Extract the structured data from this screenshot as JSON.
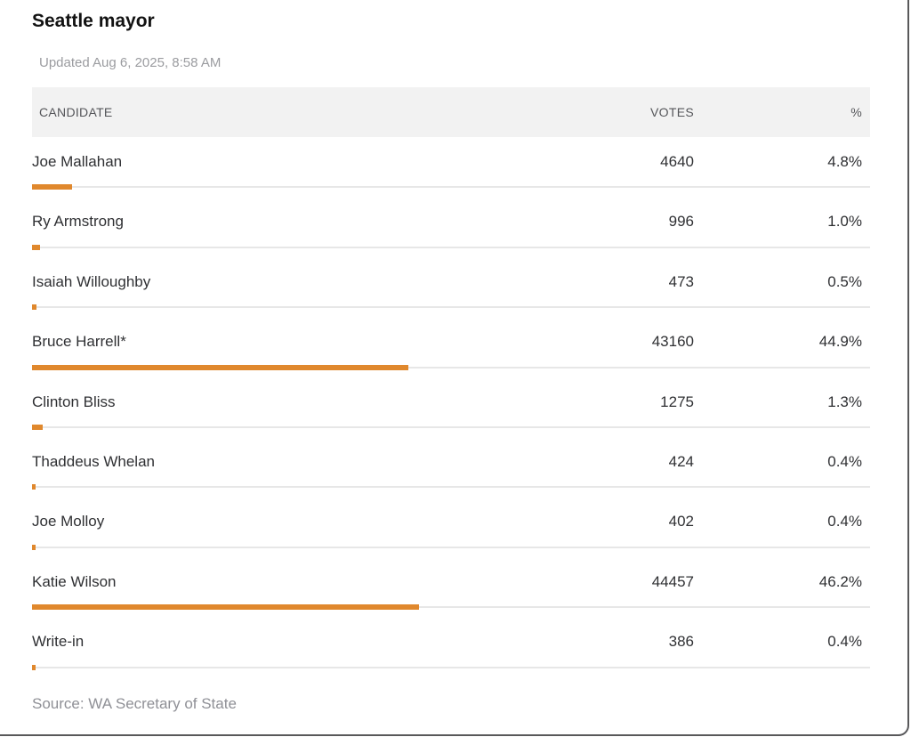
{
  "title": "Seattle mayor",
  "updated": "Updated Aug 6, 2025, 8:58 AM",
  "source": "Source: WA Secretary of State",
  "colors": {
    "bar": "#E0882D",
    "header_bg": "#F2F2F2",
    "frame_border": "#58585A"
  },
  "table": {
    "columns": [
      "CANDIDATE",
      "VOTES",
      "%"
    ],
    "rows": [
      {
        "candidate": "Joe Mallahan",
        "votes": "4640",
        "pct": "4.8%",
        "pct_value": 4.8
      },
      {
        "candidate": "Ry Armstrong",
        "votes": "996",
        "pct": "1.0%",
        "pct_value": 1.0
      },
      {
        "candidate": "Isaiah Willoughby",
        "votes": "473",
        "pct": "0.5%",
        "pct_value": 0.5
      },
      {
        "candidate": "Bruce Harrell*",
        "votes": "43160",
        "pct": "44.9%",
        "pct_value": 44.9
      },
      {
        "candidate": "Clinton Bliss",
        "votes": "1275",
        "pct": "1.3%",
        "pct_value": 1.3
      },
      {
        "candidate": "Thaddeus Whelan",
        "votes": "424",
        "pct": "0.4%",
        "pct_value": 0.4
      },
      {
        "candidate": "Joe Molloy",
        "votes": "402",
        "pct": "0.4%",
        "pct_value": 0.4
      },
      {
        "candidate": "Katie Wilson",
        "votes": "44457",
        "pct": "46.2%",
        "pct_value": 46.2
      },
      {
        "candidate": "Write-in",
        "votes": "386",
        "pct": "0.4%",
        "pct_value": 0.4
      }
    ]
  },
  "chart_data": {
    "type": "table",
    "title": "Seattle mayor",
    "subtitle": "Updated Aug 6, 2025, 8:58 AM",
    "columns": [
      "CANDIDATE",
      "VOTES",
      "%"
    ],
    "categories": [
      "Joe Mallahan",
      "Ry Armstrong",
      "Isaiah Willoughby",
      "Bruce Harrell*",
      "Clinton Bliss",
      "Thaddeus Whelan",
      "Joe Molloy",
      "Katie Wilson",
      "Write-in"
    ],
    "series": [
      {
        "name": "Votes",
        "values": [
          4640,
          996,
          473,
          43160,
          1275,
          424,
          402,
          44457,
          386
        ]
      },
      {
        "name": "Percent",
        "values": [
          4.8,
          1.0,
          0.5,
          44.9,
          1.3,
          0.4,
          0.4,
          46.2,
          0.4
        ]
      }
    ],
    "bar_color": "#E0882D",
    "bar_scale": "percent of row width, 0-100",
    "source": "Source: WA Secretary of State"
  }
}
